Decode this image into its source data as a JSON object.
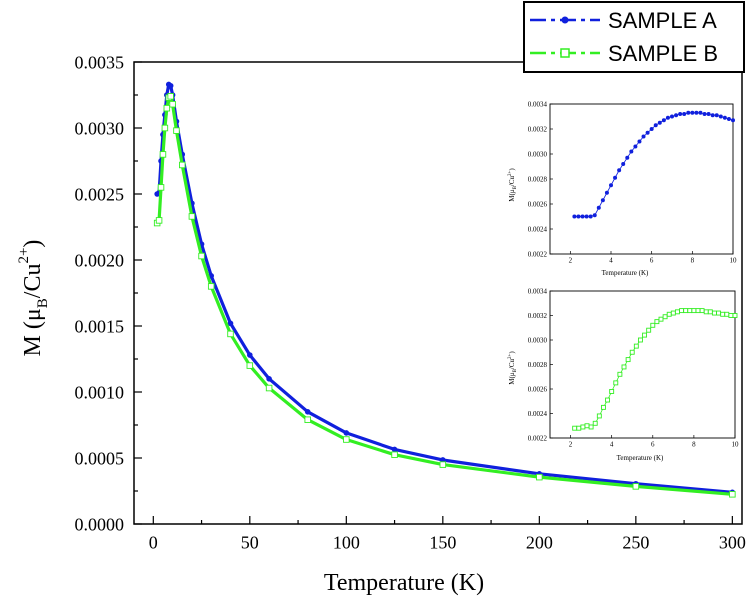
{
  "colors": {
    "series_a": "#1020dd",
    "series_b": "#33ee22",
    "axis": "#000000"
  },
  "legend": {
    "position": "top-right",
    "series_a": "SAMPLE A",
    "series_b": "SAMPLE B"
  },
  "chart_data": [
    {
      "type": "scatter",
      "role": "main",
      "xlabel": "Temperature (K)",
      "ylabel": "M (μB/Cu2+)",
      "ylabel_parts": {
        "main": "M (μ",
        "sub1": "B",
        "mid": "/Cu",
        "sup": "2+",
        "end": ")"
      },
      "xlim": [
        -10,
        305
      ],
      "ylim": [
        0,
        0.0035
      ],
      "xticks": [
        0,
        50,
        100,
        150,
        200,
        250,
        300
      ],
      "yticks": [
        "0.0000",
        "0.0005",
        "0.0010",
        "0.0015",
        "0.0020",
        "0.0025",
        "0.0030",
        "0.0035"
      ],
      "series": [
        {
          "name": "SAMPLE A",
          "marker": "filled-circle",
          "line": "dash-dot",
          "x": [
            2,
            3,
            4,
            5,
            6,
            7,
            8,
            9,
            10,
            12,
            15,
            20,
            25,
            30,
            40,
            50,
            60,
            80,
            100,
            125,
            150,
            200,
            250,
            300
          ],
          "y": [
            0.0025,
            0.00251,
            0.00275,
            0.00295,
            0.0031,
            0.00325,
            0.00333,
            0.00332,
            0.00325,
            0.00305,
            0.0028,
            0.00243,
            0.00212,
            0.00188,
            0.00152,
            0.00128,
            0.0011,
            0.00085,
            0.00069,
            0.000565,
            0.000485,
            0.00038,
            0.000305,
            0.00024
          ]
        },
        {
          "name": "SAMPLE B",
          "marker": "open-square",
          "line": "dash-dot",
          "x": [
            2,
            3,
            4,
            5,
            6,
            7,
            8,
            9,
            10,
            12,
            15,
            20,
            25,
            30,
            40,
            50,
            60,
            80,
            100,
            125,
            150,
            200,
            250,
            300
          ],
          "y": [
            0.00228,
            0.0023,
            0.00255,
            0.0028,
            0.003,
            0.00315,
            0.00323,
            0.00324,
            0.00318,
            0.00298,
            0.00272,
            0.00233,
            0.00203,
            0.0018,
            0.00144,
            0.0012,
            0.00103,
            0.00079,
            0.00064,
            0.000525,
            0.00045,
            0.000355,
            0.000285,
            0.000225
          ]
        }
      ]
    },
    {
      "type": "scatter",
      "role": "inset",
      "xlabel": "Temperature (K)",
      "ylabel": "M(μB/Cu2+)",
      "ylabel_parts": {
        "main": "M(μ",
        "sub1": "B",
        "mid": "/Cu",
        "sup": "2+",
        "end": ")"
      },
      "xlim": [
        1,
        10
      ],
      "ylim": [
        0.0022,
        0.0034
      ],
      "xticks": [
        2,
        4,
        6,
        8,
        10
      ],
      "yticks": [
        "0.0022",
        "0.0024",
        "0.0026",
        "0.0028",
        "0.0030",
        "0.0032",
        "0.0034"
      ],
      "series": [
        {
          "name": "SAMPLE A",
          "marker": "filled-circle",
          "x": [
            2.2,
            2.4,
            2.6,
            2.8,
            3.0,
            3.2,
            3.4,
            3.6,
            3.8,
            4.0,
            4.2,
            4.4,
            4.6,
            4.8,
            5.0,
            5.2,
            5.4,
            5.6,
            5.8,
            6.0,
            6.2,
            6.4,
            6.6,
            6.8,
            7.0,
            7.2,
            7.4,
            7.6,
            7.8,
            8.0,
            8.2,
            8.4,
            8.6,
            8.8,
            9.0,
            9.2,
            9.4,
            9.6,
            9.8,
            10.0
          ],
          "y": [
            0.0025,
            0.0025,
            0.0025,
            0.0025,
            0.0025,
            0.00251,
            0.00257,
            0.00263,
            0.00269,
            0.00275,
            0.00281,
            0.00287,
            0.00292,
            0.00297,
            0.00302,
            0.00306,
            0.0031,
            0.00314,
            0.00317,
            0.0032,
            0.00323,
            0.00325,
            0.00327,
            0.00329,
            0.0033,
            0.00331,
            0.00332,
            0.00332,
            0.00333,
            0.00333,
            0.00333,
            0.00333,
            0.00332,
            0.00332,
            0.00331,
            0.00331,
            0.0033,
            0.00329,
            0.00328,
            0.00327
          ]
        }
      ]
    },
    {
      "type": "scatter",
      "role": "inset",
      "xlabel": "Temperature (K)",
      "ylabel": "M(μB/Cu2+)",
      "ylabel_parts": {
        "main": "M(μ",
        "sub1": "B",
        "mid": "/Cu",
        "sup": "2+",
        "end": ")"
      },
      "xlim": [
        1,
        10
      ],
      "ylim": [
        0.0022,
        0.0034
      ],
      "xticks": [
        2,
        4,
        6,
        8,
        10
      ],
      "yticks": [
        "0.0022",
        "0.0024",
        "0.0026",
        "0.0028",
        "0.0030",
        "0.0032",
        "0.0034"
      ],
      "series": [
        {
          "name": "SAMPLE B",
          "marker": "open-square",
          "x": [
            2.2,
            2.4,
            2.6,
            2.8,
            3.0,
            3.2,
            3.4,
            3.6,
            3.8,
            4.0,
            4.2,
            4.4,
            4.6,
            4.8,
            5.0,
            5.2,
            5.4,
            5.6,
            5.8,
            6.0,
            6.2,
            6.4,
            6.6,
            6.8,
            7.0,
            7.2,
            7.4,
            7.6,
            7.8,
            8.0,
            8.2,
            8.4,
            8.6,
            8.8,
            9.0,
            9.2,
            9.4,
            9.6,
            9.8,
            10.0
          ],
          "y": [
            0.00228,
            0.00228,
            0.00229,
            0.0023,
            0.00229,
            0.00232,
            0.00238,
            0.00245,
            0.00251,
            0.00258,
            0.00265,
            0.00272,
            0.00278,
            0.00284,
            0.0029,
            0.00295,
            0.003,
            0.00304,
            0.00308,
            0.00312,
            0.00315,
            0.00317,
            0.00319,
            0.00321,
            0.00322,
            0.00323,
            0.00324,
            0.00324,
            0.00324,
            0.00324,
            0.00324,
            0.00324,
            0.00323,
            0.00323,
            0.00322,
            0.00322,
            0.00321,
            0.00321,
            0.0032,
            0.0032
          ]
        }
      ]
    }
  ]
}
